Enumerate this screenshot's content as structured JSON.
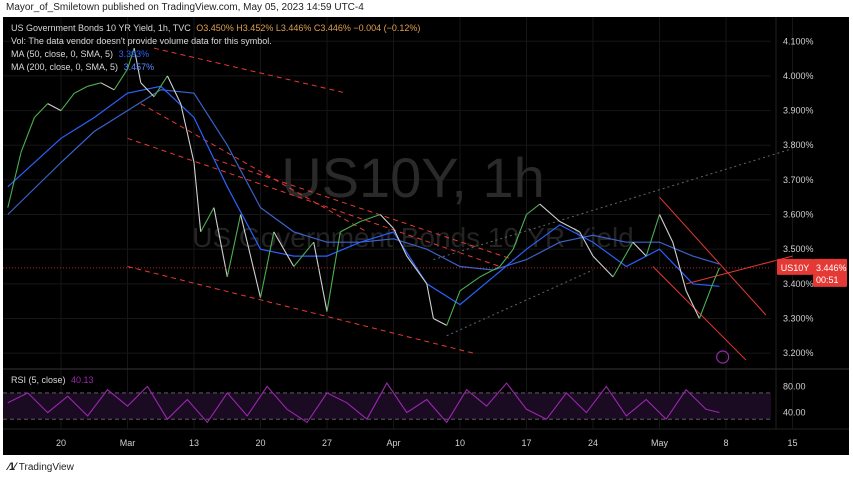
{
  "header": {
    "publisher_line": "Mayor_of_Smiletown published on TradingView.com, May 05, 2023 14:59 UTC-4"
  },
  "legend": {
    "symbol_line": "US Government Bonds 10 YR Yield, 1h, TVC",
    "ohlc": "O3.450% H3.452% L3.446% C3.446% −0.004 (−0.12%)",
    "vol_note": "Vol: The data vendor doesn't provide volume data for this symbol.",
    "ma50_label": "MA (50, close, 0, SMA, 5)",
    "ma50_value": "3.393%",
    "ma200_label": "MA (200, close, 0, SMA, 5)",
    "ma200_value": "3.457%",
    "rsi_label": "RSI (5, close)",
    "rsi_value": "40.13"
  },
  "watermark": {
    "big": "US10Y, 1h",
    "sub": "US Government Bonds 10 YR Yield"
  },
  "price_tag": {
    "symbol": "US10Y",
    "price": "3.446%",
    "countdown": "00:51"
  },
  "footer": {
    "brand": "TradingView"
  },
  "colors": {
    "background": "#000000",
    "up": "#4caf50",
    "down": "#d0d0d0",
    "ma50": "#2962ff",
    "ma200": "#2962ff",
    "channel": "#e53935",
    "rsi": "#9c27b0",
    "tag": "#e53935",
    "accent_icon": "#9c27b0"
  },
  "chart_data": {
    "type": "line",
    "title": "US Government Bonds 10 YR Yield, 1h, TVC",
    "y_axis": {
      "ticks": [
        "4.100%",
        "4.000%",
        "3.900%",
        "3.800%",
        "3.700%",
        "3.600%",
        "3.500%",
        "3.400%",
        "3.300%",
        "3.200%"
      ],
      "tick_values": [
        4.1,
        4.0,
        3.9,
        3.8,
        3.7,
        3.6,
        3.5,
        3.4,
        3.3,
        3.2
      ],
      "range": [
        3.16,
        4.17
      ],
      "position": "right"
    },
    "x_axis": {
      "ticks": [
        "20",
        "Mar",
        "13",
        "20",
        "27",
        "Apr",
        "10",
        "17",
        "24",
        "May",
        "8",
        "15"
      ],
      "tick_index": [
        0,
        1,
        2,
        3,
        4,
        5,
        6,
        7,
        8,
        9,
        10,
        11
      ]
    },
    "series": [
      {
        "name": "US10Y",
        "x": [
          -0.8,
          -0.6,
          -0.4,
          -0.2,
          0,
          0.2,
          0.4,
          0.6,
          0.8,
          1.0,
          1.1,
          1.2,
          1.4,
          1.6,
          1.8,
          2.0,
          2.1,
          2.3,
          2.5,
          2.7,
          3.0,
          3.2,
          3.5,
          3.8,
          4.0,
          4.2,
          4.5,
          4.8,
          5.0,
          5.2,
          5.5,
          5.6,
          5.8,
          6.0,
          6.3,
          6.6,
          6.8,
          7.0,
          7.2,
          7.5,
          7.8,
          8.0,
          8.3,
          8.6,
          8.8,
          9.0,
          9.2,
          9.4,
          9.6,
          9.8,
          9.9
        ],
        "values": [
          3.62,
          3.78,
          3.88,
          3.92,
          3.9,
          3.95,
          3.97,
          3.98,
          3.96,
          4.02,
          4.08,
          3.98,
          3.94,
          4.0,
          3.92,
          3.75,
          3.55,
          3.62,
          3.42,
          3.6,
          3.36,
          3.55,
          3.45,
          3.52,
          3.32,
          3.55,
          3.58,
          3.6,
          3.56,
          3.48,
          3.4,
          3.3,
          3.28,
          3.38,
          3.42,
          3.45,
          3.5,
          3.6,
          3.63,
          3.58,
          3.55,
          3.48,
          3.42,
          3.52,
          3.48,
          3.6,
          3.52,
          3.38,
          3.3,
          3.4,
          3.446
        ]
      },
      {
        "name": "MA (50, close, 0, SMA, 5)",
        "x": [
          -0.8,
          0,
          0.5,
          1.0,
          1.5,
          2.0,
          2.5,
          3.0,
          3.5,
          4.0,
          4.5,
          5.0,
          5.5,
          6.0,
          6.5,
          7.0,
          7.5,
          8.0,
          8.5,
          9.0,
          9.5,
          9.9
        ],
        "values": [
          3.68,
          3.82,
          3.88,
          3.95,
          3.97,
          3.88,
          3.68,
          3.5,
          3.48,
          3.48,
          3.52,
          3.55,
          3.4,
          3.34,
          3.42,
          3.5,
          3.57,
          3.52,
          3.45,
          3.5,
          3.4,
          3.393
        ]
      },
      {
        "name": "MA (200, close, 0, SMA, 5)",
        "x": [
          -0.8,
          0,
          0.5,
          1.0,
          1.5,
          2.0,
          2.5,
          3.0,
          3.5,
          4.0,
          4.5,
          5.0,
          5.5,
          6.0,
          6.5,
          7.0,
          7.5,
          8.0,
          8.5,
          9.0,
          9.5,
          9.9
        ],
        "values": [
          3.6,
          3.75,
          3.84,
          3.9,
          3.96,
          3.95,
          3.8,
          3.62,
          3.55,
          3.52,
          3.52,
          3.53,
          3.5,
          3.45,
          3.44,
          3.47,
          3.52,
          3.54,
          3.52,
          3.52,
          3.48,
          3.457
        ]
      }
    ],
    "rsi": {
      "name": "RSI (5, close)",
      "ticks": [
        "80.00",
        "40.00"
      ],
      "tick_values": [
        80,
        40
      ],
      "range": [
        15,
        105
      ],
      "levels": [
        70,
        30
      ],
      "x": [
        -0.8,
        -0.5,
        -0.2,
        0.1,
        0.4,
        0.7,
        1.0,
        1.3,
        1.6,
        1.9,
        2.2,
        2.5,
        2.8,
        3.1,
        3.4,
        3.7,
        4.0,
        4.3,
        4.6,
        4.9,
        5.2,
        5.5,
        5.8,
        6.1,
        6.4,
        6.7,
        7.0,
        7.3,
        7.6,
        7.9,
        8.2,
        8.5,
        8.8,
        9.1,
        9.4,
        9.7,
        9.9
      ],
      "values": [
        55,
        70,
        40,
        65,
        35,
        75,
        50,
        80,
        30,
        60,
        25,
        70,
        35,
        80,
        45,
        25,
        70,
        55,
        30,
        85,
        40,
        60,
        25,
        75,
        50,
        85,
        45,
        30,
        70,
        40,
        80,
        35,
        60,
        30,
        75,
        45,
        40.13
      ]
    }
  }
}
